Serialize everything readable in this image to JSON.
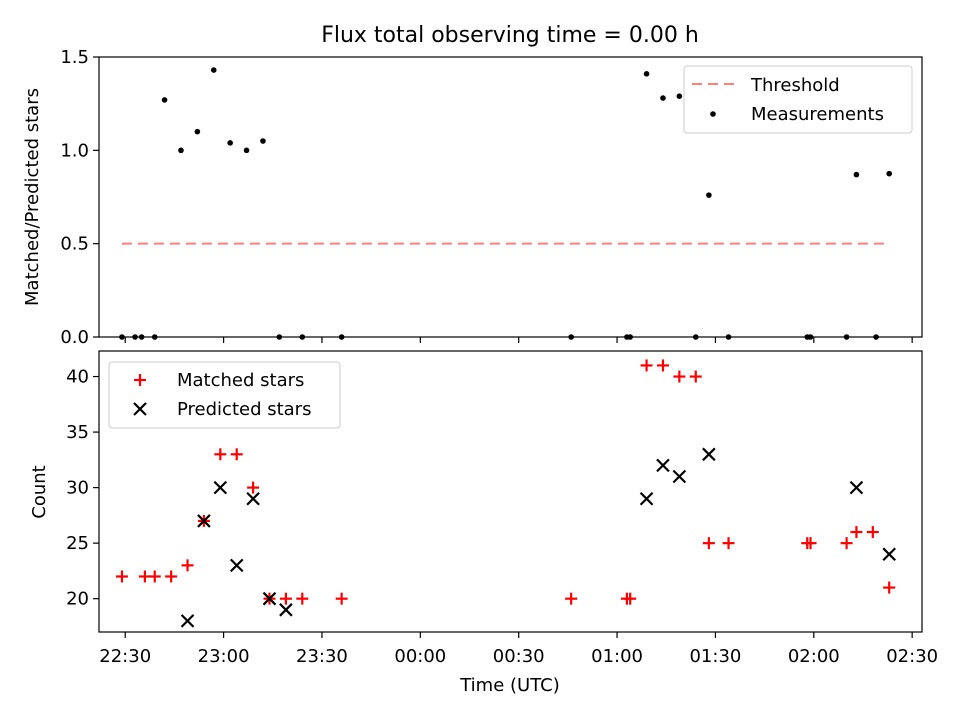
{
  "figure_title": "Flux total observing time = 0.00 h",
  "colors": {
    "threshold": "#ff7f7f",
    "measurements": "#000000",
    "matched": "#ff0000",
    "predicted": "#000000",
    "axis": "#000000",
    "background": "#ffffff"
  },
  "chart_data": [
    {
      "type": "scatter",
      "panel": "top",
      "title": "Flux total observing time = 0.00 h",
      "xlabel": "",
      "ylabel": "Matched/Predicted stars",
      "xlim": [
        "22:22",
        "02:33"
      ],
      "ylim": [
        0,
        1.5
      ],
      "yticks": [
        "0.0",
        "0.5",
        "1.0",
        "1.5"
      ],
      "legend_position": "upper right",
      "grid": false,
      "series": [
        {
          "name": "Threshold",
          "kind": "dashed-line",
          "x": [
            "22:29",
            "02:23"
          ],
          "y": [
            0.5,
            0.5
          ]
        },
        {
          "name": "Measurements",
          "kind": "points",
          "x": [
            "22:29",
            "22:33",
            "22:35",
            "22:39",
            "22:42",
            "22:47",
            "22:52",
            "22:57",
            "23:02",
            "23:07",
            "23:12",
            "23:17",
            "23:24",
            "23:36",
            "00:46",
            "01:03",
            "01:04",
            "01:09",
            "01:14",
            "01:19",
            "01:24",
            "01:28",
            "01:34",
            "01:58",
            "01:59",
            "02:10",
            "02:13",
            "02:19",
            "02:23"
          ],
          "y": [
            0,
            0,
            0,
            0,
            1.27,
            1.0,
            1.1,
            1.43,
            1.04,
            1.0,
            1.05,
            0,
            0,
            0,
            0,
            0,
            0,
            1.41,
            1.28,
            1.29,
            0,
            0.76,
            0,
            0,
            0,
            0,
            0.87,
            0,
            0.875
          ]
        }
      ]
    },
    {
      "type": "scatter",
      "panel": "bottom",
      "title": "",
      "xlabel": "Time (UTC)",
      "ylabel": "Count",
      "xlim": [
        "22:22",
        "02:33"
      ],
      "ylim": [
        17,
        42.3
      ],
      "yticks": [
        "20",
        "25",
        "30",
        "35",
        "40"
      ],
      "xticks": [
        "22:30",
        "23:00",
        "23:30",
        "00:00",
        "00:30",
        "01:00",
        "01:30",
        "02:00",
        "02:30"
      ],
      "legend_position": "upper left",
      "grid": false,
      "series": [
        {
          "name": "Matched stars",
          "marker": "+",
          "x": [
            "22:29",
            "22:36",
            "22:39",
            "22:44",
            "22:49",
            "22:54",
            "22:59",
            "23:04",
            "23:09",
            "23:14",
            "23:19",
            "23:24",
            "23:36",
            "00:46",
            "01:03",
            "01:04",
            "01:09",
            "01:14",
            "01:19",
            "01:24",
            "01:28",
            "01:34",
            "01:58",
            "01:59",
            "02:10",
            "02:13",
            "02:18",
            "02:23"
          ],
          "y": [
            22,
            22,
            22,
            22,
            23,
            27,
            33,
            33,
            30,
            20,
            20,
            20,
            20,
            20,
            20,
            20,
            41,
            41,
            40,
            40,
            25,
            25,
            25,
            25,
            25,
            26,
            26,
            21
          ]
        },
        {
          "name": "Predicted stars",
          "marker": "x",
          "x": [
            "22:49",
            "22:54",
            "22:59",
            "23:04",
            "23:09",
            "23:14",
            "23:19",
            "01:09",
            "01:14",
            "01:19",
            "01:28",
            "02:13",
            "02:23"
          ],
          "y": [
            18,
            27,
            30,
            23,
            29,
            20,
            19,
            29,
            32,
            31,
            33,
            30,
            24
          ]
        }
      ]
    }
  ]
}
